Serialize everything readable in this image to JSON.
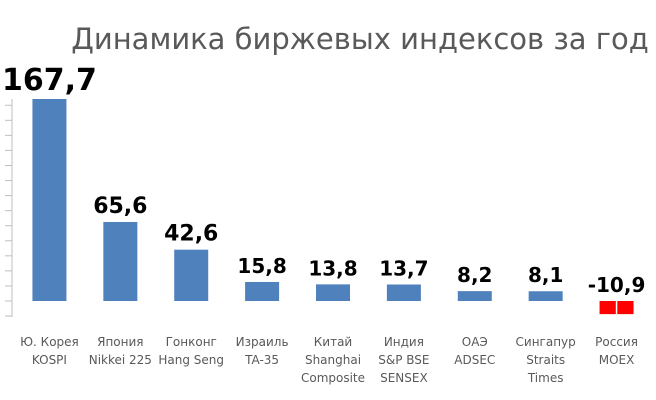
{
  "chart_data": {
    "type": "bar",
    "title": "Динамика биржевых индексов за год",
    "categories": [
      [
        "Ю. Корея",
        "KOSPI"
      ],
      [
        "Япония",
        "Nikkei 225"
      ],
      [
        "Гонконг",
        "Hang Seng"
      ],
      [
        "Израиль",
        "TA-35"
      ],
      [
        "Китай",
        "Shanghai",
        "Composite"
      ],
      [
        "Индия",
        "S&P BSE",
        "SENSEX"
      ],
      [
        "ОАЭ",
        "ADSEC"
      ],
      [
        "Сингапур",
        "Straits",
        "Times"
      ],
      [
        "Россия",
        "MOEX"
      ]
    ],
    "values": [
      167.7,
      65.6,
      42.6,
      15.8,
      13.8,
      13.7,
      8.2,
      8.1,
      -10.9
    ],
    "data_labels": [
      "167,7",
      "65,6",
      "42,6",
      "15,8",
      "13,8",
      "13,7",
      "8,2",
      "8,1",
      "-10,9"
    ],
    "colors": {
      "positive": "#4f81bd",
      "negative": "#ff0000",
      "title": "#595959",
      "axis": "#bfbfbf"
    },
    "xlabel": "",
    "ylabel": "",
    "ylim": [
      -15,
      180
    ],
    "grid": false,
    "legend": "none"
  }
}
